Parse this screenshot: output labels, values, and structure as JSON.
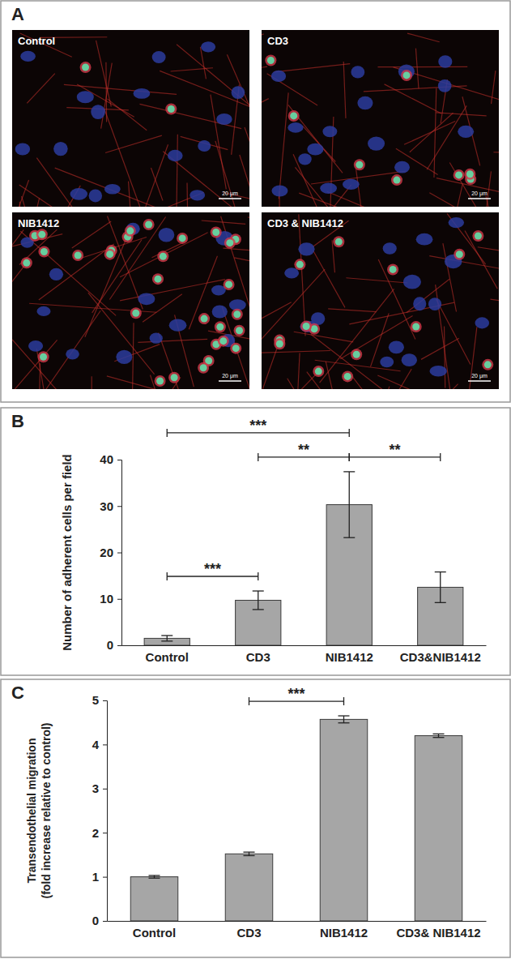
{
  "panel_a": {
    "panel": "A",
    "images": [
      {
        "title": "Control",
        "scale_bar": "20 μm"
      },
      {
        "title": "CD3",
        "scale_bar": "20 μm"
      },
      {
        "title": "NIB1412",
        "scale_bar": "20 μm"
      },
      {
        "title": "CD3 & NIB1412",
        "scale_bar": "20 μm"
      }
    ]
  },
  "chart_data": [
    {
      "type": "bar",
      "panel": "B",
      "y_label": "Number of adherent cells per field",
      "categories": [
        "Control",
        "CD3",
        "NIB1412",
        "CD3&NIB1412"
      ],
      "values": [
        1.5,
        9.7,
        30.3,
        12.5
      ],
      "errors": [
        0.6,
        2.0,
        7.1,
        3.3
      ],
      "color": "#a6a6a6",
      "ylim": [
        0,
        40
      ],
      "yticks": [
        0,
        10,
        20,
        30,
        40
      ],
      "annotations": [
        {
          "text": "***",
          "from": 0,
          "to": 2
        },
        {
          "text": "**",
          "from": 1,
          "to": 2
        },
        {
          "text": "**",
          "from": 2,
          "to": 3
        },
        {
          "text": "***",
          "from": 0,
          "to": 1
        }
      ]
    },
    {
      "type": "bar",
      "panel": "C",
      "y_label": [
        "Transendothelial migration",
        "(fold increase relative to control)"
      ],
      "categories": [
        "Control",
        "CD3",
        "NIB1412",
        "CD3& NIB1412"
      ],
      "values": [
        1.0,
        1.52,
        4.57,
        4.2
      ],
      "errors": [
        0.03,
        0.04,
        0.08,
        0.04
      ],
      "color": "#a6a6a6",
      "ylim": [
        0,
        5
      ],
      "yticks": [
        0,
        1,
        2,
        3,
        4,
        5
      ],
      "annotations": [
        {
          "text": "***",
          "from": 1,
          "to": 2
        }
      ]
    }
  ]
}
